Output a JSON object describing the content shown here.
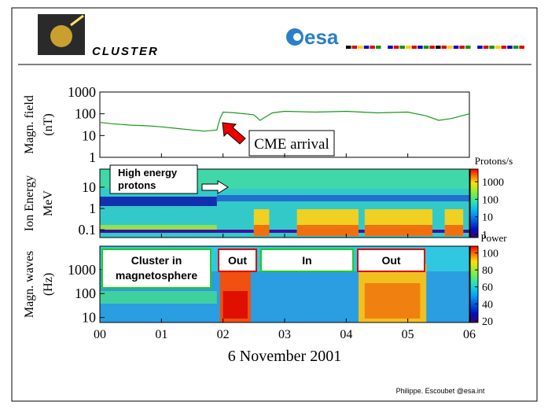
{
  "header": {
    "title": "CLUSTER",
    "logo": "esa"
  },
  "chart_data": [
    {
      "type": "line",
      "ylabel": [
        "Magn. field",
        "(nT)"
      ],
      "ylog": true,
      "ylim": [
        1,
        1000
      ],
      "yticks": [
        1,
        10,
        100,
        1000
      ],
      "xlim": [
        0,
        6
      ],
      "color": "#1a9a1a",
      "x": [
        0,
        0.2,
        0.5,
        0.8,
        1.0,
        1.2,
        1.5,
        1.7,
        1.9,
        1.95,
        2.0,
        2.2,
        2.5,
        2.6,
        2.8,
        3.0,
        3.5,
        4.0,
        4.5,
        5.0,
        5.3,
        5.5,
        5.7,
        6.0
      ],
      "values": [
        40,
        35,
        30,
        28,
        25,
        22,
        18,
        16,
        18,
        60,
        120,
        110,
        90,
        50,
        110,
        130,
        120,
        130,
        110,
        120,
        80,
        50,
        60,
        100
      ],
      "annotation": "CME arrival"
    },
    {
      "type": "heatmap",
      "ylabel": [
        "Ion Energy",
        "MeV"
      ],
      "ylog": true,
      "ylim": [
        0.043,
        71
      ],
      "yticks": [
        0.1,
        1,
        10
      ],
      "annotation": [
        "High energy",
        "protons"
      ],
      "colorbar": {
        "label": "Protons/s",
        "log": true,
        "lim": [
          0.66,
          5250
        ],
        "ticks": [
          1,
          10,
          100,
          1000
        ]
      }
    },
    {
      "type": "heatmap",
      "ylabel": [
        "Magn. waves",
        "(Hz)"
      ],
      "ylog": true,
      "ylim": [
        6.2,
        9500
      ],
      "yticks": [
        10,
        100,
        1000
      ],
      "regions": [
        [
          "Cluster in",
          "magnetosphere"
        ],
        [
          "Out"
        ],
        [
          "In"
        ],
        [
          "Out"
        ]
      ],
      "colorbar": {
        "label": "Power",
        "log": false,
        "lim": [
          18,
          108
        ],
        "ticks": [
          20,
          40,
          60,
          80,
          100
        ]
      },
      "xlim": [
        0,
        6
      ],
      "xticks": [
        {
          "value": 0,
          "label": "00"
        },
        {
          "value": 1,
          "label": "01"
        },
        {
          "value": 2,
          "label": "02"
        },
        {
          "value": 3,
          "label": "03"
        },
        {
          "value": 4,
          "label": "04"
        },
        {
          "value": 5,
          "label": "05"
        },
        {
          "value": 6,
          "label": "06"
        }
      ],
      "xlabel": "6 November 2001"
    }
  ],
  "footer": "Philippe. Escoubet @esa.int"
}
